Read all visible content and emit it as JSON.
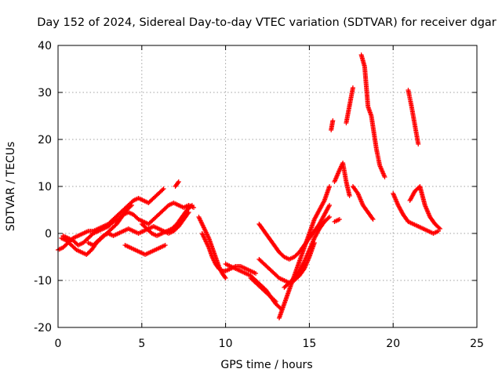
{
  "chart_data": {
    "type": "scatter",
    "title": "Day 152 of 2024, Sidereal Day-to-day VTEC variation (SDTVAR) for receiver dgar",
    "xlabel": "GPS time / hours",
    "ylabel": "SDTVAR / TECUs",
    "xlim": [
      0,
      25
    ],
    "ylim": [
      -20,
      40
    ],
    "xticks": [
      "0",
      "5",
      "10",
      "15",
      "20",
      "25"
    ],
    "yticks": [
      "-20",
      "-10",
      "0",
      "10",
      "20",
      "30",
      "40"
    ],
    "grid": true,
    "marker": "+",
    "color": "#ff0000",
    "series": [
      {
        "segments": [
          [
            [
              0.0,
              -3.5
            ],
            [
              0.3,
              -3.0
            ],
            [
              0.6,
              -2.0
            ],
            [
              0.9,
              -1.0
            ],
            [
              1.2,
              -0.5
            ],
            [
              1.5,
              0.0
            ],
            [
              1.8,
              0.5
            ],
            [
              2.1,
              0.5
            ],
            [
              2.4,
              1.0
            ],
            [
              2.7,
              1.5
            ],
            [
              3.0,
              2.0
            ],
            [
              3.3,
              3.0
            ],
            [
              3.6,
              4.0
            ],
            [
              3.9,
              5.0
            ],
            [
              4.2,
              6.0
            ],
            [
              4.5,
              7.0
            ],
            [
              4.8,
              7.5
            ],
            [
              5.1,
              7.0
            ],
            [
              5.4,
              6.5
            ],
            [
              5.7,
              7.5
            ],
            [
              6.0,
              8.5
            ],
            [
              6.3,
              9.5
            ]
          ],
          [
            [
              0.2,
              -1.0
            ],
            [
              0.5,
              -1.5
            ],
            [
              0.8,
              -2.5
            ],
            [
              1.1,
              -3.5
            ],
            [
              1.4,
              -4.0
            ],
            [
              1.7,
              -4.5
            ],
            [
              2.0,
              -3.5
            ],
            [
              2.3,
              -2.0
            ],
            [
              2.6,
              -1.0
            ],
            [
              2.9,
              0.0
            ],
            [
              3.2,
              1.0
            ],
            [
              3.5,
              2.0
            ],
            [
              3.8,
              3.5
            ],
            [
              4.1,
              5.0
            ],
            [
              4.4,
              6.0
            ]
          ],
          [
            [
              0.3,
              -0.5
            ],
            [
              0.6,
              -1.0
            ],
            [
              0.9,
              -1.5
            ],
            [
              1.2,
              -2.5
            ],
            [
              1.5,
              -2.0
            ],
            [
              1.8,
              -1.0
            ],
            [
              2.1,
              0.0
            ],
            [
              2.4,
              0.5
            ],
            [
              2.7,
              1.0
            ],
            [
              3.0,
              1.5
            ],
            [
              3.3,
              2.5
            ],
            [
              3.6,
              3.0
            ],
            [
              3.9,
              4.0
            ],
            [
              4.2,
              4.5
            ],
            [
              4.5,
              4.0
            ],
            [
              4.8,
              3.0
            ],
            [
              5.1,
              2.5
            ],
            [
              5.4,
              2.0
            ],
            [
              5.7,
              3.0
            ],
            [
              6.0,
              4.0
            ],
            [
              6.3,
              5.0
            ],
            [
              6.6,
              6.0
            ],
            [
              6.9,
              6.5
            ],
            [
              7.2,
              6.0
            ],
            [
              7.5,
              5.5
            ],
            [
              7.8,
              6.0
            ],
            [
              8.1,
              5.5
            ]
          ],
          [
            [
              1.8,
              -2.0
            ],
            [
              2.1,
              -2.5
            ],
            [
              2.4,
              -1.5
            ],
            [
              2.7,
              -0.5
            ],
            [
              3.0,
              0.0
            ],
            [
              3.3,
              -0.5
            ],
            [
              3.6,
              0.0
            ],
            [
              3.9,
              0.5
            ],
            [
              4.2,
              1.0
            ],
            [
              4.5,
              0.5
            ],
            [
              4.8,
              0.0
            ],
            [
              5.1,
              0.5
            ],
            [
              5.4,
              1.0
            ],
            [
              5.7,
              1.5
            ],
            [
              6.0,
              1.0
            ],
            [
              6.3,
              0.5
            ],
            [
              6.6,
              0.0
            ],
            [
              6.9,
              0.5
            ],
            [
              7.2,
              1.5
            ],
            [
              7.5,
              3.0
            ],
            [
              7.8,
              4.5
            ]
          ],
          [
            [
              4.0,
              -2.5
            ],
            [
              4.3,
              -3.0
            ],
            [
              4.6,
              -3.5
            ],
            [
              4.9,
              -4.0
            ],
            [
              5.2,
              -4.5
            ],
            [
              5.5,
              -4.0
            ],
            [
              5.8,
              -3.5
            ],
            [
              6.1,
              -3.0
            ],
            [
              6.4,
              -2.5
            ]
          ],
          [
            [
              5.0,
              2.0
            ],
            [
              5.3,
              1.0
            ],
            [
              5.6,
              0.0
            ],
            [
              5.9,
              -0.5
            ],
            [
              6.2,
              0.0
            ],
            [
              6.5,
              0.5
            ],
            [
              6.8,
              1.0
            ],
            [
              7.1,
              2.0
            ],
            [
              7.4,
              3.5
            ],
            [
              7.7,
              5.0
            ],
            [
              8.0,
              6.0
            ]
          ],
          [
            [
              7.0,
              10.0
            ],
            [
              7.2,
              11.0
            ]
          ],
          [
            [
              8.4,
              3.5
            ],
            [
              8.6,
              2.0
            ],
            [
              8.8,
              0.5
            ],
            [
              9.0,
              -1.0
            ],
            [
              9.2,
              -3.0
            ],
            [
              9.4,
              -5.0
            ],
            [
              9.6,
              -7.0
            ],
            [
              9.8,
              -8.5
            ],
            [
              10.0,
              -9.5
            ]
          ],
          [
            [
              8.6,
              0.0
            ],
            [
              8.8,
              -1.5
            ],
            [
              9.0,
              -3.0
            ],
            [
              9.2,
              -5.0
            ],
            [
              9.4,
              -6.5
            ],
            [
              9.6,
              -7.5
            ],
            [
              9.8,
              -8.0
            ],
            [
              10.0,
              -8.0
            ],
            [
              10.3,
              -7.5
            ],
            [
              10.6,
              -7.0
            ],
            [
              10.9,
              -7.0
            ],
            [
              11.2,
              -7.5
            ],
            [
              11.5,
              -8.0
            ],
            [
              11.8,
              -8.5
            ]
          ],
          [
            [
              10.0,
              -6.5
            ],
            [
              10.3,
              -7.0
            ],
            [
              10.6,
              -7.5
            ],
            [
              10.9,
              -8.0
            ],
            [
              11.2,
              -8.5
            ],
            [
              11.5,
              -9.0
            ],
            [
              11.8,
              -10.0
            ],
            [
              12.1,
              -11.0
            ],
            [
              12.4,
              -12.0
            ],
            [
              12.7,
              -13.5
            ],
            [
              13.0,
              -15.0
            ],
            [
              13.3,
              -16.0
            ]
          ],
          [
            [
              11.5,
              -9.5
            ],
            [
              11.8,
              -10.5
            ],
            [
              12.1,
              -11.5
            ],
            [
              12.4,
              -12.5
            ],
            [
              12.7,
              -13.5
            ],
            [
              13.0,
              -14.5
            ]
          ],
          [
            [
              12.0,
              -5.5
            ],
            [
              12.3,
              -6.5
            ],
            [
              12.6,
              -7.5
            ],
            [
              12.9,
              -8.5
            ],
            [
              13.2,
              -9.5
            ],
            [
              13.5,
              -10.0
            ],
            [
              13.8,
              -10.5
            ],
            [
              14.1,
              -10.0
            ],
            [
              14.4,
              -9.0
            ],
            [
              14.7,
              -7.5
            ],
            [
              15.0,
              -5.0
            ],
            [
              15.3,
              -2.0
            ]
          ],
          [
            [
              12.0,
              2.0
            ],
            [
              12.3,
              0.5
            ],
            [
              12.6,
              -1.0
            ],
            [
              12.9,
              -2.5
            ],
            [
              13.2,
              -4.0
            ],
            [
              13.5,
              -5.0
            ],
            [
              13.8,
              -5.5
            ],
            [
              14.1,
              -5.0
            ],
            [
              14.4,
              -4.0
            ],
            [
              14.7,
              -2.5
            ],
            [
              15.0,
              -1.0
            ],
            [
              15.3,
              0.5
            ],
            [
              15.6,
              2.0
            ],
            [
              15.9,
              4.0
            ],
            [
              16.2,
              6.0
            ]
          ],
          [
            [
              13.2,
              -18.0
            ],
            [
              13.5,
              -15.0
            ],
            [
              13.8,
              -12.0
            ],
            [
              14.1,
              -9.0
            ],
            [
              14.4,
              -6.0
            ],
            [
              14.7,
              -3.0
            ],
            [
              15.0,
              0.0
            ],
            [
              15.3,
              3.0
            ],
            [
              15.6,
              5.0
            ],
            [
              15.9,
              7.0
            ],
            [
              16.2,
              10.0
            ]
          ],
          [
            [
              13.5,
              -11.5
            ],
            [
              13.8,
              -10.5
            ],
            [
              14.1,
              -9.5
            ],
            [
              14.4,
              -8.0
            ],
            [
              14.7,
              -6.0
            ],
            [
              15.0,
              -3.5
            ],
            [
              15.3,
              -1.0
            ],
            [
              15.6,
              1.0
            ],
            [
              15.9,
              2.5
            ],
            [
              16.2,
              3.5
            ]
          ],
          [
            [
              16.5,
              2.5
            ],
            [
              16.8,
              3.0
            ]
          ],
          [
            [
              16.3,
              22.0
            ],
            [
              16.4,
              24.0
            ]
          ],
          [
            [
              16.5,
              11.0
            ],
            [
              16.8,
              13.5
            ],
            [
              17.0,
              15.0
            ],
            [
              17.2,
              11.0
            ],
            [
              17.4,
              8.0
            ]
          ],
          [
            [
              17.2,
              23.5
            ],
            [
              17.6,
              31.0
            ]
          ],
          [
            [
              17.6,
              10.0
            ],
            [
              17.9,
              8.5
            ],
            [
              18.2,
              6.0
            ],
            [
              18.5,
              4.5
            ],
            [
              18.8,
              3.0
            ]
          ],
          [
            [
              18.1,
              38.0
            ],
            [
              18.3,
              35.5
            ],
            [
              18.5,
              27.0
            ],
            [
              18.7,
              25.0
            ],
            [
              19.0,
              18.0
            ],
            [
              19.2,
              14.5
            ],
            [
              19.5,
              12.0
            ]
          ],
          [
            [
              20.0,
              8.5
            ],
            [
              20.3,
              6.0
            ],
            [
              20.6,
              4.0
            ],
            [
              20.9,
              2.5
            ],
            [
              21.2,
              2.0
            ],
            [
              21.5,
              1.5
            ],
            [
              21.8,
              1.0
            ],
            [
              22.1,
              0.5
            ],
            [
              22.4,
              0.0
            ],
            [
              22.7,
              0.5
            ]
          ],
          [
            [
              20.9,
              30.5
            ],
            [
              21.1,
              27.0
            ],
            [
              21.3,
              23.0
            ],
            [
              21.5,
              19.0
            ]
          ],
          [
            [
              21.0,
              7.0
            ],
            [
              21.3,
              9.0
            ],
            [
              21.6,
              10.0
            ],
            [
              21.9,
              6.0
            ],
            [
              22.2,
              3.5
            ],
            [
              22.5,
              2.0
            ],
            [
              22.8,
              1.0
            ]
          ]
        ]
      }
    ]
  }
}
